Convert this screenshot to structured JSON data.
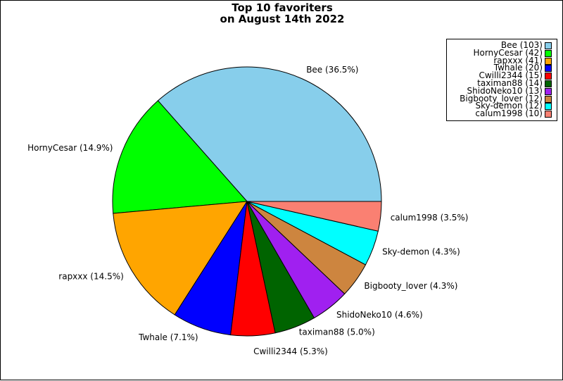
{
  "chart_data": {
    "type": "pie",
    "title_lines": [
      "Top 10 favoriters",
      "on August 14th 2022"
    ],
    "slices": [
      {
        "name": "Bee",
        "value": 103,
        "pct_label": "Bee (36.5%)",
        "legend_label": "Bee (103)",
        "color": "#87ceeb"
      },
      {
        "name": "HornyCesar",
        "value": 42,
        "pct_label": "HornyCesar (14.9%)",
        "legend_label": "HornyCesar (42)",
        "color": "#00ff00"
      },
      {
        "name": "rapxxx",
        "value": 41,
        "pct_label": "rapxxx (14.5%)",
        "legend_label": "rapxxx (41)",
        "color": "#ffa500"
      },
      {
        "name": "Twhale",
        "value": 20,
        "pct_label": "Twhale (7.1%)",
        "legend_label": "Twhale (20)",
        "color": "#0000ff"
      },
      {
        "name": "Cwilli2344",
        "value": 15,
        "pct_label": "Cwilli2344 (5.3%)",
        "legend_label": "Cwilli2344 (15)",
        "color": "#ff0000"
      },
      {
        "name": "taximan88",
        "value": 14,
        "pct_label": "taximan88 (5.0%)",
        "legend_label": "taximan88 (14)",
        "color": "#006400"
      },
      {
        "name": "ShidoNeko10",
        "value": 13,
        "pct_label": "ShidoNeko10 (4.6%)",
        "legend_label": "ShidoNeko10 (13)",
        "color": "#a020f0"
      },
      {
        "name": "Bigbooty_lover",
        "value": 12,
        "pct_label": "Bigbooty_lover (4.3%)",
        "legend_label": "Bigbooty_lover (12)",
        "color": "#cd853f"
      },
      {
        "name": "Sky-demon",
        "value": 12,
        "pct_label": "Sky-demon (4.3%)",
        "legend_label": "Sky-demon (12)",
        "color": "#00ffff"
      },
      {
        "name": "calum1998",
        "value": 10,
        "pct_label": "calum1998 (3.5%)",
        "legend_label": "calum1998 (10)",
        "color": "#fa8072"
      }
    ],
    "start_angle": "3 o'clock",
    "direction": "counterclockwise",
    "legend_position": "top-right"
  }
}
